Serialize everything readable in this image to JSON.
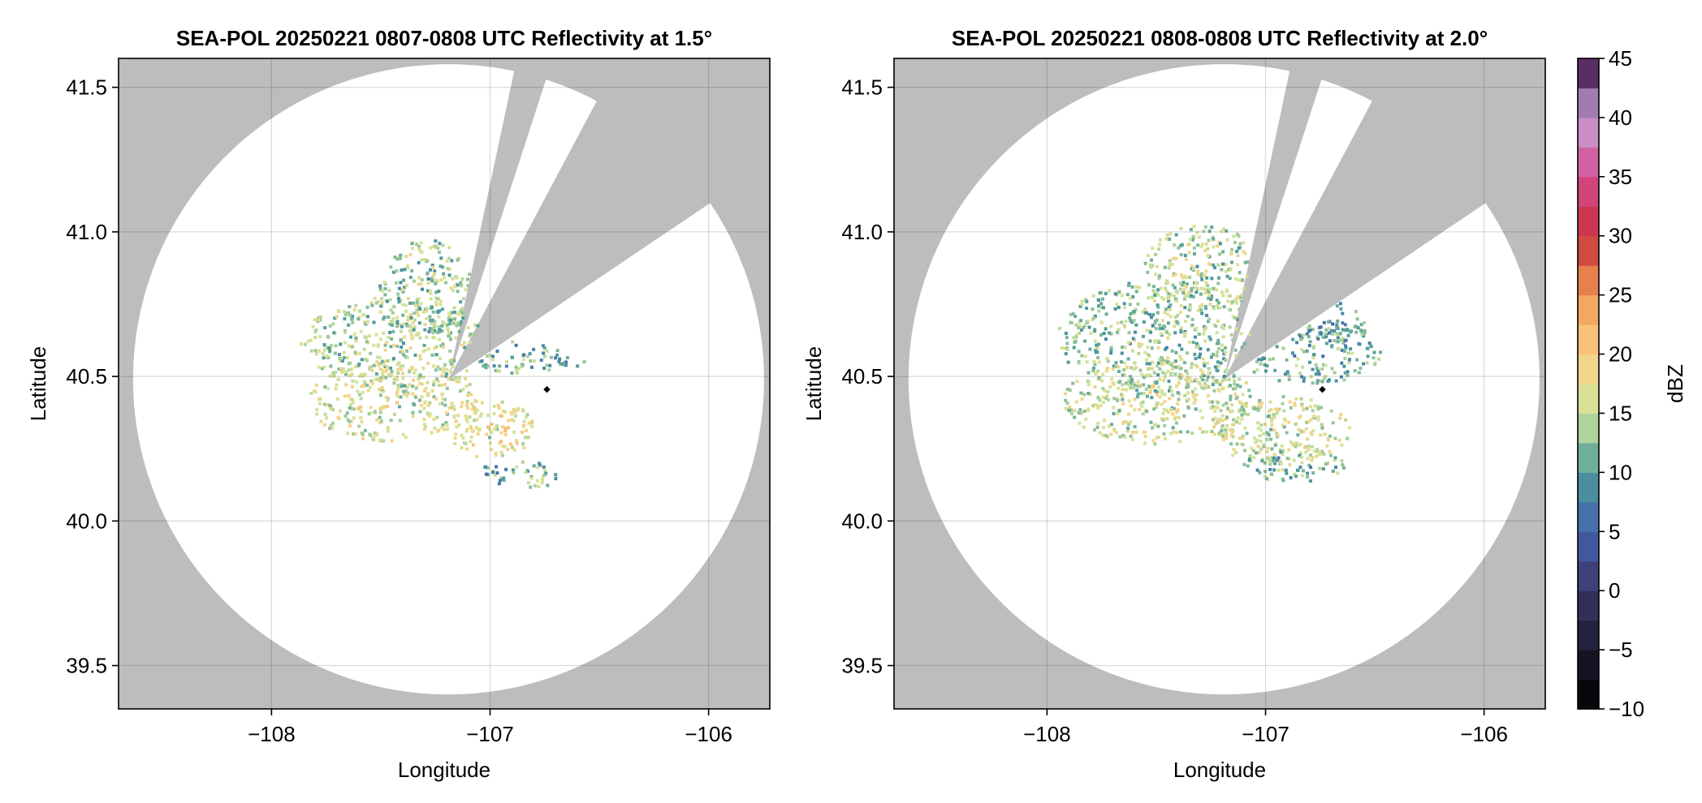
{
  "colors": {
    "no_coverage": "#bdbdbd",
    "coverage": "#ffffff",
    "site_marker": "#000000"
  },
  "colorbar": {
    "label": "dBZ",
    "ticks": [
      "45",
      "40",
      "35",
      "30",
      "25",
      "20",
      "15",
      "10",
      "5",
      "0",
      "−5",
      "−10"
    ],
    "levels_min": -10,
    "levels_max": 45,
    "level_step": 2.5,
    "colormap_stops": [
      {
        "v": -10,
        "c": "#000000"
      },
      {
        "v": -5,
        "c": "#1b1b2e"
      },
      {
        "v": 0,
        "c": "#3a3568"
      },
      {
        "v": 5,
        "c": "#4463b0"
      },
      {
        "v": 10,
        "c": "#4e9c9a"
      },
      {
        "v": 15,
        "c": "#cfe59a"
      },
      {
        "v": 20,
        "c": "#fbd085"
      },
      {
        "v": 25,
        "c": "#f09a52"
      },
      {
        "v": 30,
        "c": "#c8303a"
      },
      {
        "v": 35,
        "c": "#d44c90"
      },
      {
        "v": 40,
        "c": "#c6a3d6"
      },
      {
        "v": 45,
        "c": "#35073f"
      }
    ]
  },
  "chart_data": [
    {
      "type": "heatmap",
      "title": "SEA-POL 20250221 0807-0808 UTC Reflectivity at 1.5°",
      "xlabel": "Longitude",
      "ylabel": "Latitude",
      "xticks": [
        "−108",
        "−107",
        "−106"
      ],
      "yticks": [
        "41.5",
        "41.0",
        "40.5",
        "40.0",
        "39.5"
      ],
      "xlim": [
        -108.7,
        -105.72
      ],
      "ylim": [
        39.35,
        41.6
      ],
      "radar_center": [
        -107.19,
        40.49
      ],
      "coverage_radius_deg_lat": 1.09,
      "blocked_sectors_deg": [
        [
          12,
          18
        ],
        [
          28,
          56
        ]
      ],
      "site_marker": [
        -106.74,
        40.455
      ],
      "echo_clusters": [
        {
          "lon": -107.45,
          "lat": 40.62,
          "rx": 0.32,
          "ry": 0.16,
          "dbz": 14
        },
        {
          "lon": -107.45,
          "lat": 40.42,
          "rx": 0.3,
          "ry": 0.14,
          "dbz": 16
        },
        {
          "lon": -107.3,
          "lat": 40.8,
          "rx": 0.16,
          "ry": 0.18,
          "dbz": 13
        },
        {
          "lon": -107.0,
          "lat": 40.32,
          "rx": 0.15,
          "ry": 0.1,
          "dbz": 17
        },
        {
          "lon": -106.88,
          "lat": 40.57,
          "rx": 0.16,
          "ry": 0.06,
          "dbz": 11
        },
        {
          "lon": -106.8,
          "lat": 40.17,
          "rx": 0.08,
          "ry": 0.05,
          "dbz": 12
        },
        {
          "lon": -106.97,
          "lat": 40.17,
          "rx": 0.06,
          "ry": 0.04,
          "dbz": 10
        },
        {
          "lon": -106.63,
          "lat": 40.56,
          "rx": 0.05,
          "ry": 0.02,
          "dbz": 9
        }
      ]
    },
    {
      "type": "heatmap",
      "title": "SEA-POL 20250221 0808-0808 UTC Reflectivity at 2.0°",
      "xlabel": "Longitude",
      "ylabel": "Latitude",
      "xticks": [
        "−108",
        "−107",
        "−106"
      ],
      "yticks": [
        "41.5",
        "41.0",
        "40.5",
        "40.0",
        "39.5"
      ],
      "xlim": [
        -108.7,
        -105.72
      ],
      "ylim": [
        39.35,
        41.6
      ],
      "radar_center": [
        -107.19,
        40.49
      ],
      "coverage_radius_deg_lat": 1.09,
      "blocked_sectors_deg": [
        [
          12,
          18
        ],
        [
          28,
          56
        ]
      ],
      "site_marker": [
        -106.74,
        40.455
      ],
      "echo_clusters": [
        {
          "lon": -107.48,
          "lat": 40.64,
          "rx": 0.36,
          "ry": 0.2,
          "dbz": 13
        },
        {
          "lon": -107.48,
          "lat": 40.42,
          "rx": 0.34,
          "ry": 0.15,
          "dbz": 15
        },
        {
          "lon": -107.3,
          "lat": 40.88,
          "rx": 0.2,
          "ry": 0.15,
          "dbz": 14
        },
        {
          "lon": -106.95,
          "lat": 40.32,
          "rx": 0.25,
          "ry": 0.12,
          "dbz": 16
        },
        {
          "lon": -106.88,
          "lat": 40.2,
          "rx": 0.18,
          "ry": 0.06,
          "dbz": 12
        },
        {
          "lon": -106.8,
          "lat": 40.58,
          "rx": 0.25,
          "ry": 0.1,
          "dbz": 11
        },
        {
          "lon": -106.68,
          "lat": 40.68,
          "rx": 0.1,
          "ry": 0.08,
          "dbz": 10
        }
      ]
    }
  ]
}
